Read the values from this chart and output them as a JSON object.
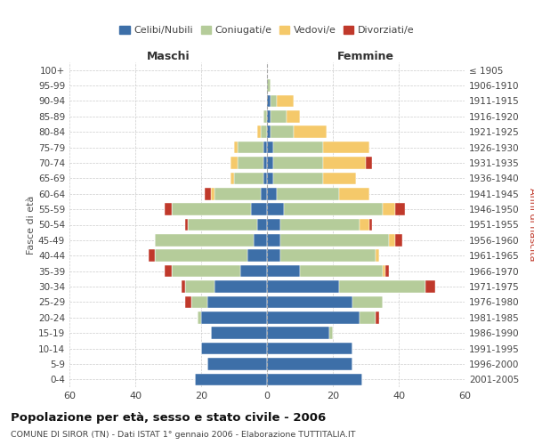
{
  "age_groups": [
    "0-4",
    "5-9",
    "10-14",
    "15-19",
    "20-24",
    "25-29",
    "30-34",
    "35-39",
    "40-44",
    "45-49",
    "50-54",
    "55-59",
    "60-64",
    "65-69",
    "70-74",
    "75-79",
    "80-84",
    "85-89",
    "90-94",
    "95-99",
    "100+"
  ],
  "birth_years": [
    "2001-2005",
    "1996-2000",
    "1991-1995",
    "1986-1990",
    "1981-1985",
    "1976-1980",
    "1971-1975",
    "1966-1970",
    "1961-1965",
    "1956-1960",
    "1951-1955",
    "1946-1950",
    "1941-1945",
    "1936-1940",
    "1931-1935",
    "1926-1930",
    "1921-1925",
    "1916-1920",
    "1911-1915",
    "1906-1910",
    "≤ 1905"
  ],
  "male": {
    "celibe": [
      22,
      18,
      20,
      17,
      20,
      18,
      16,
      8,
      6,
      4,
      3,
      5,
      2,
      1,
      1,
      1,
      0,
      0,
      0,
      0,
      0
    ],
    "coniugato": [
      0,
      0,
      0,
      0,
      1,
      5,
      9,
      21,
      28,
      30,
      21,
      24,
      14,
      9,
      8,
      8,
      2,
      1,
      0,
      0,
      0
    ],
    "vedovo": [
      0,
      0,
      0,
      0,
      0,
      0,
      0,
      0,
      0,
      0,
      0,
      0,
      1,
      1,
      2,
      1,
      1,
      0,
      0,
      0,
      0
    ],
    "divorziato": [
      0,
      0,
      0,
      0,
      0,
      2,
      1,
      2,
      2,
      0,
      1,
      2,
      2,
      0,
      0,
      0,
      0,
      0,
      0,
      0,
      0
    ]
  },
  "female": {
    "nubile": [
      29,
      26,
      26,
      19,
      28,
      26,
      22,
      10,
      4,
      4,
      4,
      5,
      3,
      2,
      2,
      2,
      1,
      1,
      1,
      0,
      0
    ],
    "coniugata": [
      0,
      0,
      0,
      1,
      5,
      9,
      26,
      25,
      29,
      33,
      24,
      30,
      19,
      15,
      15,
      15,
      7,
      5,
      2,
      1,
      0
    ],
    "vedova": [
      0,
      0,
      0,
      0,
      0,
      0,
      0,
      1,
      1,
      2,
      3,
      4,
      9,
      10,
      13,
      14,
      10,
      4,
      5,
      0,
      0
    ],
    "divorziata": [
      0,
      0,
      0,
      0,
      1,
      0,
      3,
      1,
      0,
      2,
      1,
      3,
      0,
      0,
      2,
      0,
      0,
      0,
      0,
      0,
      0
    ]
  },
  "colors": {
    "celibe": "#3d6fa8",
    "coniugato": "#b5cc9a",
    "vedovo": "#f5c96a",
    "divorziato": "#c0392b"
  },
  "title": "Popolazione per età, sesso e stato civile - 2006",
  "subtitle": "COMUNE DI SIROR (TN) - Dati ISTAT 1° gennaio 2006 - Elaborazione TUTTITALIA.IT",
  "xlabel_left": "Maschi",
  "xlabel_right": "Femmine",
  "ylabel_left": "Fasce di età",
  "ylabel_right": "Anni di nascita",
  "xlim": 60,
  "legend_labels": [
    "Celibi/Nubili",
    "Coniugati/e",
    "Vedovi/e",
    "Divorziati/e"
  ]
}
